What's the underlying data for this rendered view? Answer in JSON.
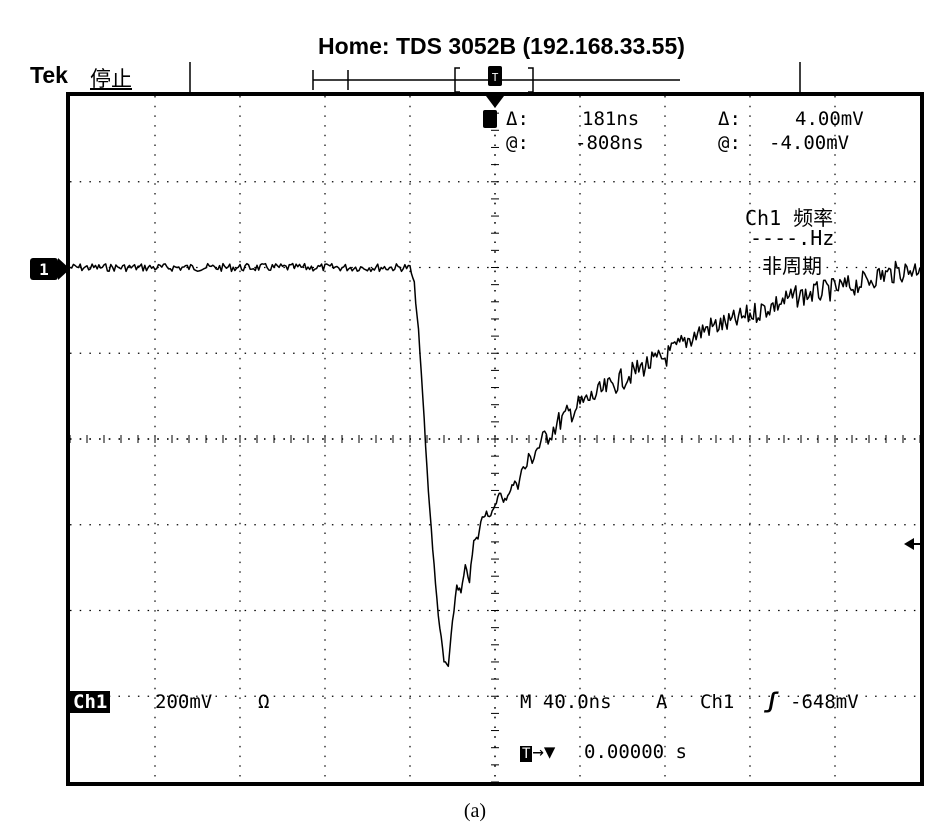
{
  "header": {
    "title": "Home:  TDS 3052B    (192.168.33.55)",
    "brand": "Tek",
    "status": "停止"
  },
  "measurements": {
    "delta_time_label": "Δ:",
    "delta_time_value": "181ns",
    "delta_volt_label": "Δ:",
    "delta_volt_value": "4.00mV",
    "at_time_label": "@:",
    "at_time_value": "-808ns",
    "at_volt_label": "@:",
    "at_volt_value": "-4.00mV"
  },
  "frequency_readout": {
    "title": "Ch1 频率",
    "value": "----.Hz",
    "status": "非周期"
  },
  "channel": {
    "name": "Ch1",
    "scale": "200mV",
    "impedance": "Ω",
    "marker": "1"
  },
  "timebase": {
    "main": "M 40.0ns",
    "trigger_mode": "A",
    "trigger_source": "Ch1",
    "trigger_level": "-648mV",
    "position_value": "0.00000 s"
  },
  "caption": "(a)",
  "colors": {
    "trace": "#000000",
    "grid": "#000000",
    "background": "#ffffff",
    "label_bg": "#000000"
  },
  "chart_data": {
    "type": "line",
    "x_unit": "ns",
    "y_unit": "mV",
    "x_range": [
      -200,
      200
    ],
    "y_range": [
      -800,
      800
    ],
    "grid": "10x8 divisions, dotted",
    "series": [
      {
        "x": [
          -200,
          -40,
          -38,
          -36,
          -34,
          -32,
          -30,
          -28,
          -26,
          -24,
          -22,
          -20,
          -18,
          -16,
          -14,
          -12,
          -10,
          -8,
          -6,
          -4,
          -2,
          0,
          2,
          4,
          6,
          8,
          10,
          15,
          20,
          25,
          30,
          40,
          50,
          60,
          70,
          80,
          90,
          100,
          110,
          120,
          130,
          140,
          150,
          160,
          170,
          180,
          190,
          200
        ],
        "y": [
          400,
          400,
          360,
          250,
          100,
          -70,
          -210,
          -340,
          -440,
          -520,
          -530,
          -430,
          -340,
          -360,
          -300,
          -330,
          -240,
          -230,
          -180,
          -170,
          -180,
          -160,
          -120,
          -150,
          -130,
          -110,
          -100,
          -60,
          -20,
          10,
          40,
          80,
          110,
          140,
          170,
          190,
          230,
          260,
          270,
          290,
          310,
          330,
          340,
          350,
          360,
          380,
          390,
          400
        ]
      }
    ]
  }
}
